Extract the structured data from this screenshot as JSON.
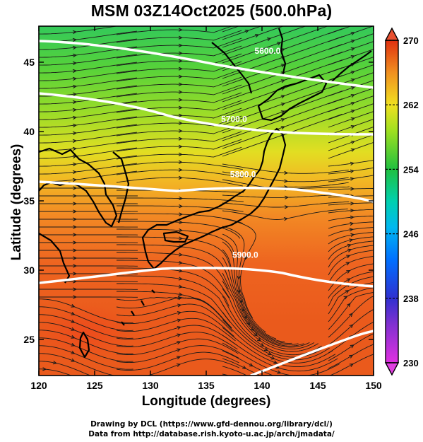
{
  "title": "MSM 03Z14Oct2025 (500.0hPa)",
  "x_axis": {
    "label": "Longitude (degrees)",
    "ticks": [
      120,
      125,
      130,
      135,
      140,
      145,
      150
    ],
    "range": [
      120,
      150
    ]
  },
  "y_axis": {
    "label": "Latitude  (degrees)",
    "ticks": [
      25,
      30,
      35,
      40,
      45
    ],
    "range": [
      22.4,
      47.6
    ]
  },
  "colorbar": {
    "ticks": [
      230,
      238,
      246,
      254,
      262,
      270
    ],
    "range": [
      230,
      270
    ]
  },
  "contours": [
    {
      "label": "5600.0",
      "label_lon": 140.5,
      "label_lat": 45.6
    },
    {
      "label": "5700.0",
      "label_lon": 137.5,
      "label_lat": 40.7
    },
    {
      "label": "5800.0",
      "label_lon": 138.3,
      "label_lat": 36.7
    },
    {
      "label": "5900.0",
      "label_lon": 138.5,
      "label_lat": 30.9
    }
  ],
  "credits": {
    "line1": "Drawing by DCL (https://www.gfd-dennou.org/library/dcl/)",
    "line2": "Data from http://database.rish.kyoto-u.ac.jp/arch/jmadata/"
  },
  "colors": {
    "scale": [
      "#e030e0",
      "#3030d0",
      "#0090ff",
      "#00d0c0",
      "#20c040",
      "#b0e020",
      "#f0e020",
      "#f08020",
      "#e03010"
    ]
  }
}
